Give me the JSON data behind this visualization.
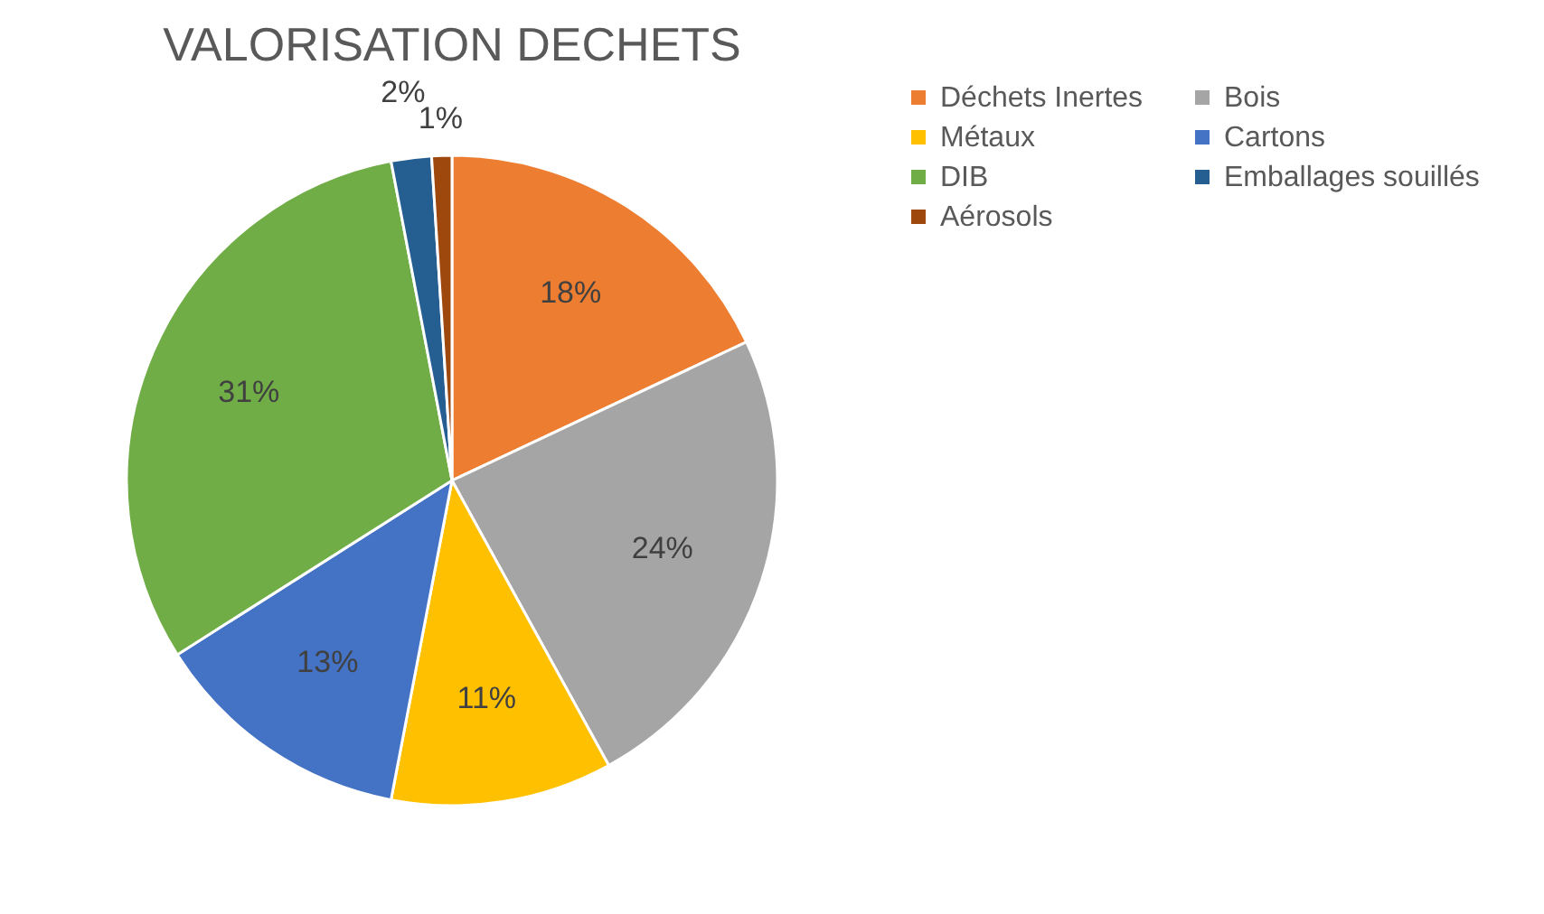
{
  "chart_data": {
    "type": "pie",
    "title": "VALORISATION DECHETS",
    "categories": [
      "Déchets Inertes",
      "Bois",
      "Métaux",
      "Cartons",
      "DIB",
      "Emballages souillés",
      "Aérosols"
    ],
    "values": [
      18,
      24,
      11,
      13,
      31,
      2,
      1
    ],
    "value_labels": [
      "18%",
      "24%",
      "11%",
      "13%",
      "31%",
      "2%",
      "1%"
    ],
    "colors": [
      "#ed7d31",
      "#a5a5a5",
      "#ffc000",
      "#4472c4",
      "#70ad47",
      "#255e91",
      "#9e480e"
    ],
    "legend": "top right"
  }
}
